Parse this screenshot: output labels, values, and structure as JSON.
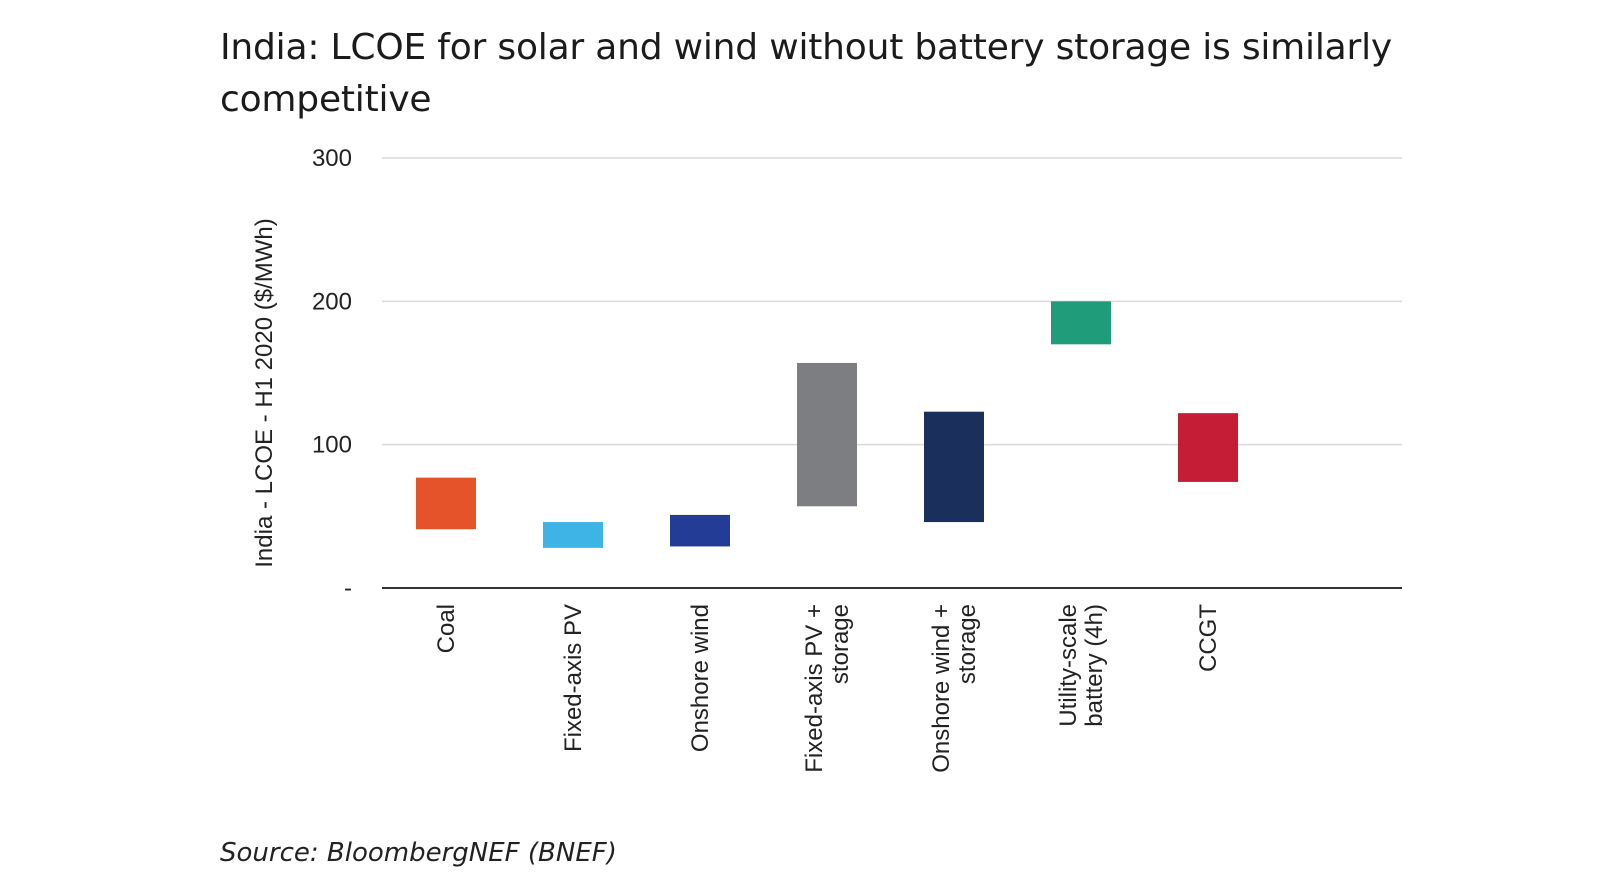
{
  "title": "India: LCOE for solar and wind without battery storage is similarly competitive",
  "source": "Source: BloombergNEF (BNEF)",
  "chart_data": {
    "type": "bar",
    "subtype": "floating-range",
    "ylabel": "India - LCOE - H1 2020 ($/MWh)",
    "xlabel": "",
    "ylim": [
      0,
      300
    ],
    "yticks": [
      {
        "value": 0,
        "label": "-"
      },
      {
        "value": 100,
        "label": "100"
      },
      {
        "value": 200,
        "label": "200"
      },
      {
        "value": 300,
        "label": "300"
      }
    ],
    "grid": true,
    "categories": [
      [
        "Coal"
      ],
      [
        "Fixed-axis PV"
      ],
      [
        "Onshore wind"
      ],
      [
        "Fixed-axis PV +",
        "storage"
      ],
      [
        "Onshore wind +",
        "storage"
      ],
      [
        "Utility-scale",
        "battery (4h)"
      ],
      [
        "CCGT"
      ]
    ],
    "ranges": [
      {
        "low": 41,
        "high": 77,
        "color": "#e5532a"
      },
      {
        "low": 28,
        "high": 46,
        "color": "#3db3e6"
      },
      {
        "low": 29,
        "high": 51,
        "color": "#233d96"
      },
      {
        "low": 57,
        "high": 157,
        "color": "#7d7e82"
      },
      {
        "low": 46,
        "high": 123,
        "color": "#1b2f5c"
      },
      {
        "low": 170,
        "high": 200,
        "color": "#1f9c7a"
      },
      {
        "low": 74,
        "high": 122,
        "color": "#c41d35"
      }
    ]
  }
}
